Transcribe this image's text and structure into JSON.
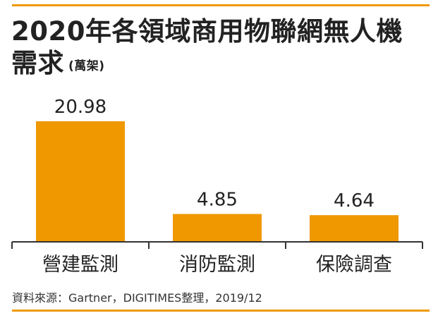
{
  "title_line1": "2020年各領域商用物聯網無人機",
  "title_line2": "需求",
  "unit": "(萬架)",
  "source": "資料來源：Gartner，DIGITIMES整理，2019/12",
  "colors": {
    "bar": "#f09800",
    "rule": "#ef9a00",
    "axis": "#333333",
    "text": "#222222"
  },
  "chart_data": {
    "type": "bar",
    "categories": [
      "營建監測",
      "消防監測",
      "保險調查"
    ],
    "values": [
      20.98,
      4.85,
      4.64
    ],
    "title": "2020年各領域商用物聯網無人機需求",
    "ylabel": "(萬架)",
    "ylim": [
      0,
      20.98
    ],
    "grid": false,
    "legend": "none"
  }
}
